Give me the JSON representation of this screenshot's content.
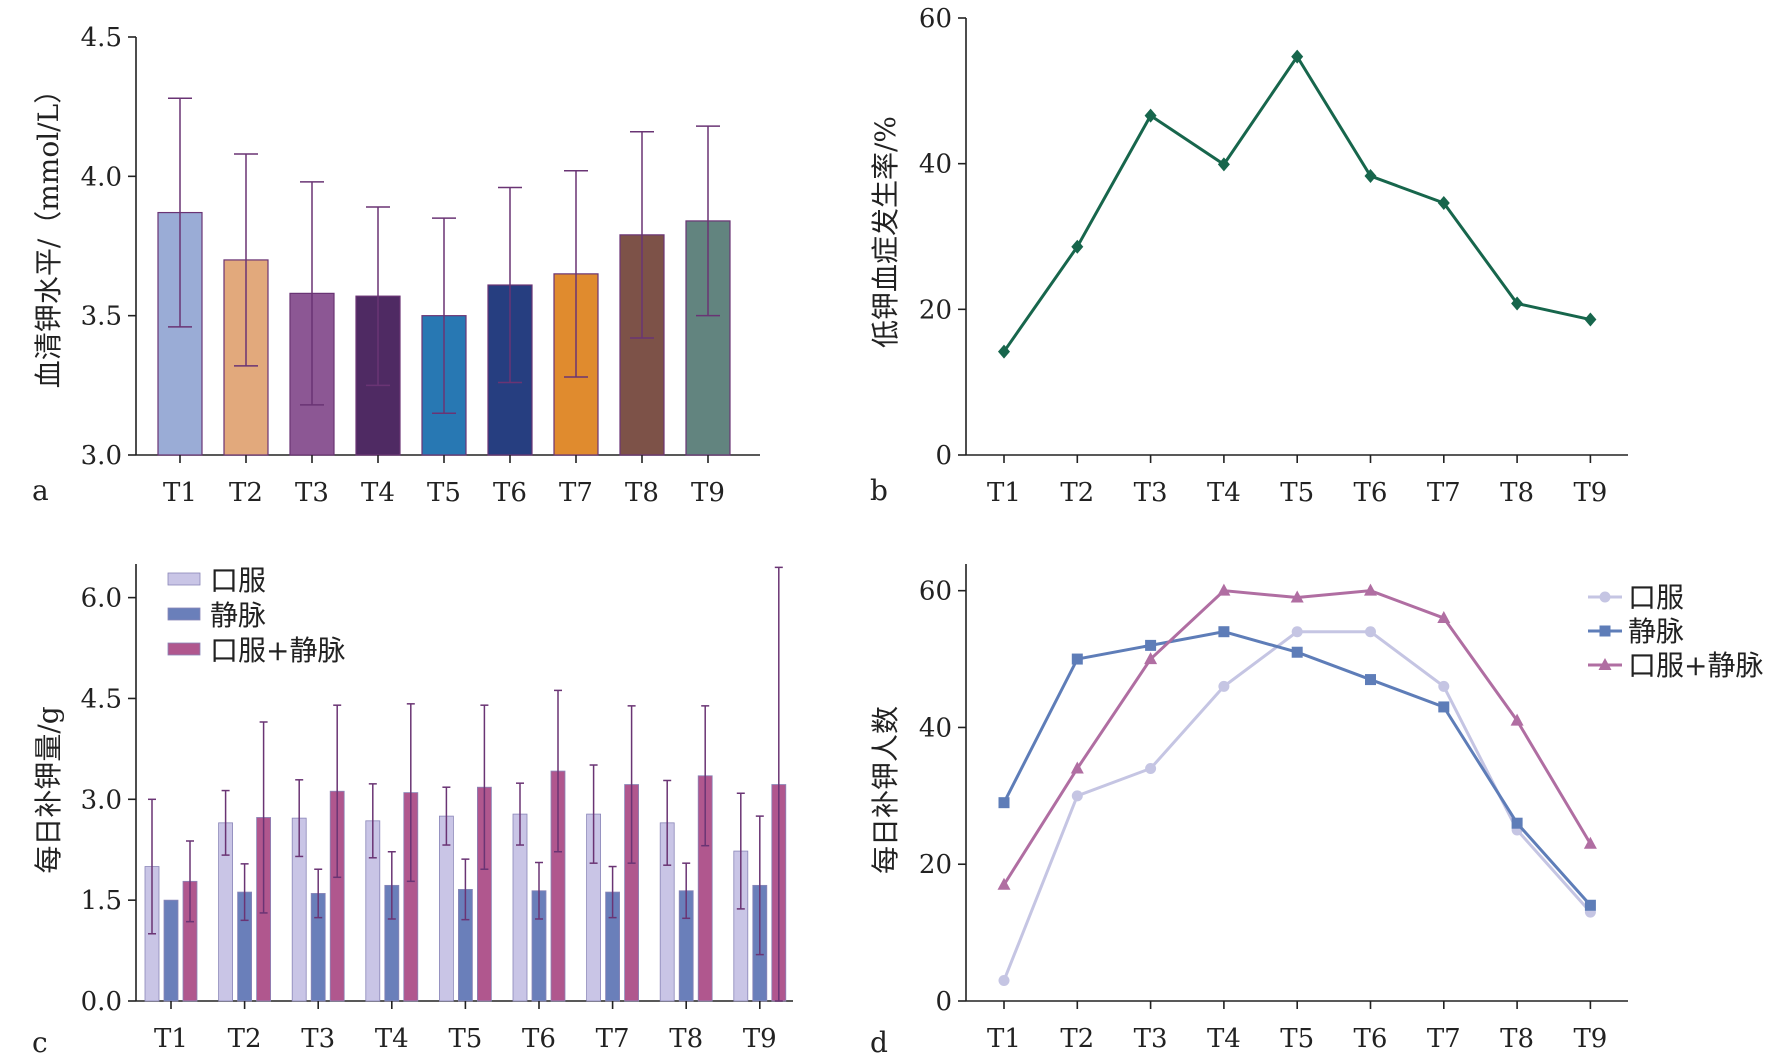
{
  "chart_data": [
    {
      "panel_label": "a",
      "type": "bar",
      "categories": [
        "T1",
        "T2",
        "T3",
        "T4",
        "T5",
        "T6",
        "T7",
        "T8",
        "T9"
      ],
      "values": [
        3.87,
        3.7,
        3.58,
        3.57,
        3.5,
        3.61,
        3.65,
        3.79,
        3.84
      ],
      "errors": [
        0.41,
        0.38,
        0.4,
        0.32,
        0.35,
        0.35,
        0.37,
        0.37,
        0.34
      ],
      "colors": [
        "#9aacd6",
        "#e2a97c",
        "#8c5794",
        "#4f2a63",
        "#2878b3",
        "#263e80",
        "#e08b2e",
        "#7d5248",
        "#62847f"
      ],
      "errorbar_color": "#6a3474",
      "ylabel": "血清钾水平/（mmol/L）",
      "ylim": [
        3.0,
        4.5
      ],
      "yticks": [
        "3.0",
        "3.5",
        "4.0",
        "4.5"
      ]
    },
    {
      "panel_label": "b",
      "type": "line",
      "categories": [
        "T1",
        "T2",
        "T3",
        "T4",
        "T5",
        "T6",
        "T7",
        "T8",
        "T9"
      ],
      "values": [
        14.2,
        28.6,
        46.6,
        39.9,
        54.7,
        38.3,
        34.6,
        20.8,
        18.6
      ],
      "color": "#17664c",
      "marker": "diamond",
      "ylabel": "低钾血症发生率/%",
      "ylim": [
        0,
        60
      ],
      "yticks": [
        "0",
        "20",
        "40",
        "60"
      ]
    },
    {
      "panel_label": "c",
      "type": "bar",
      "categories": [
        "T1",
        "T2",
        "T3",
        "T4",
        "T5",
        "T6",
        "T7",
        "T8",
        "T9"
      ],
      "series": [
        {
          "name": "口服",
          "color": "#c9c5e6",
          "values": [
            2.0,
            2.65,
            2.72,
            2.68,
            2.75,
            2.78,
            2.78,
            2.65,
            2.23
          ],
          "errors": [
            1.0,
            0.48,
            0.57,
            0.55,
            0.43,
            0.46,
            0.73,
            0.63,
            0.86
          ]
        },
        {
          "name": "静脉",
          "color": "#6a7fba",
          "values": [
            1.5,
            1.62,
            1.6,
            1.72,
            1.66,
            1.64,
            1.62,
            1.64,
            1.72
          ],
          "errors": [
            0.0,
            0.42,
            0.36,
            0.5,
            0.45,
            0.42,
            0.38,
            0.41,
            1.03
          ]
        },
        {
          "name": "口服+静脉",
          "color": "#b0578e",
          "values": [
            1.78,
            2.73,
            3.12,
            3.1,
            3.18,
            3.42,
            3.22,
            3.35,
            3.22
          ],
          "errors": [
            0.6,
            1.42,
            1.28,
            1.32,
            1.22,
            1.2,
            1.17,
            1.04,
            3.23
          ]
        }
      ],
      "errorbar_color": "#6a3474",
      "ylabel": "每日补钾量/g",
      "ylim": [
        0,
        6.5
      ],
      "yticks": [
        "0.0",
        "1.5",
        "3.0",
        "4.5",
        "6.0"
      ],
      "legend": "top-left"
    },
    {
      "panel_label": "d",
      "type": "line",
      "categories": [
        "T1",
        "T2",
        "T3",
        "T4",
        "T5",
        "T6",
        "T7",
        "T8",
        "T9"
      ],
      "series": [
        {
          "name": "口服",
          "color": "#c5c5e3",
          "marker": "circle",
          "values": [
            3,
            30,
            34,
            46,
            54,
            54,
            46,
            25,
            13
          ]
        },
        {
          "name": "静脉",
          "color": "#5e7db8",
          "marker": "square",
          "values": [
            29,
            50,
            52,
            54,
            51,
            47,
            43,
            26,
            14
          ]
        },
        {
          "name": "口服+静脉",
          "color": "#b06ea2",
          "marker": "triangle",
          "values": [
            17,
            34,
            50,
            60,
            59,
            60,
            56,
            41,
            23
          ]
        }
      ],
      "ylabel": "每日补钾人数",
      "ylim": [
        0,
        62
      ],
      "yticks": [
        "0",
        "20",
        "40",
        "60"
      ],
      "legend": "top-right"
    }
  ]
}
